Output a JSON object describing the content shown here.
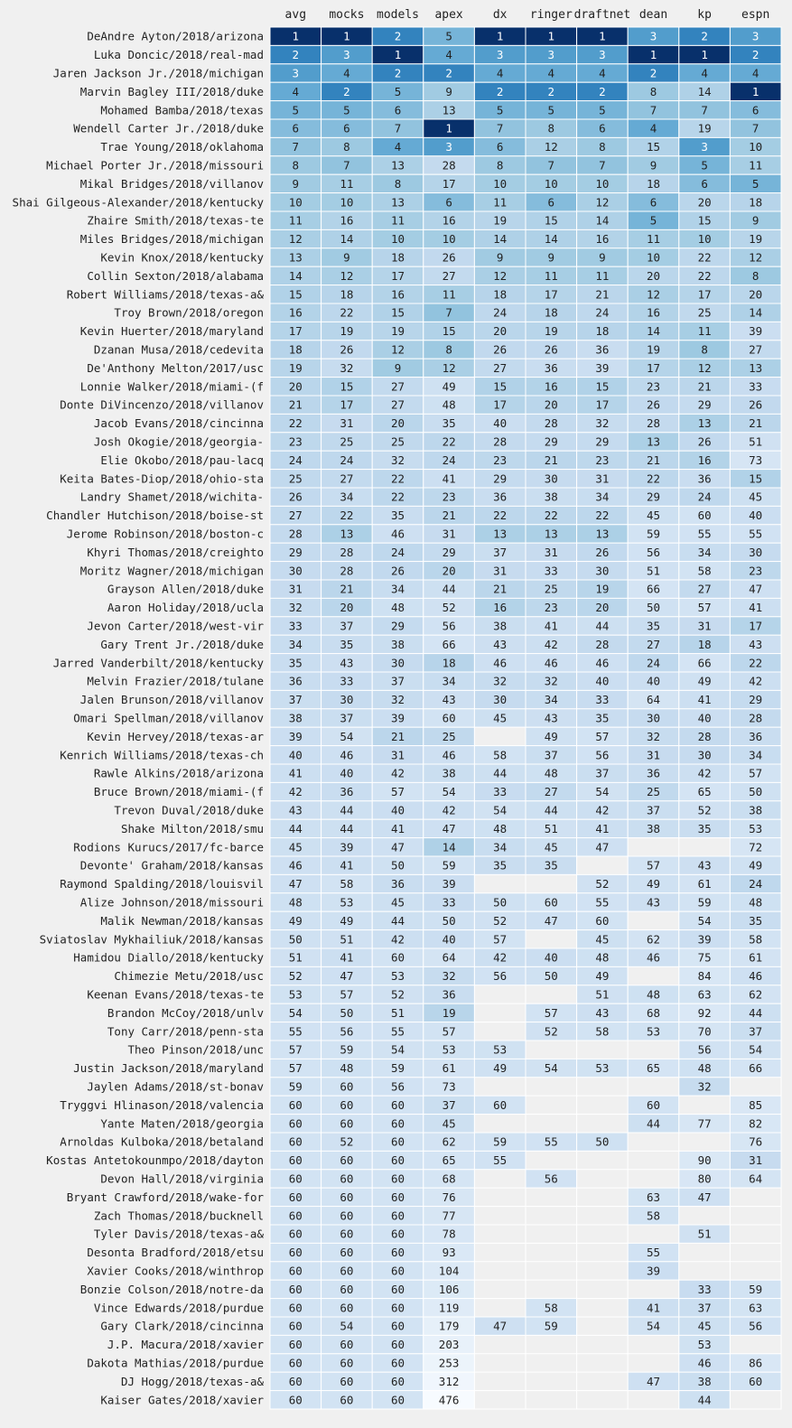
{
  "chart_data": {
    "type": "heatmap",
    "title": "",
    "xlabel": "",
    "ylabel": "",
    "colormap": "Blues (darker = better rank)",
    "colors": {
      "background": "#f0f0f0",
      "cell_border": "#ffffff",
      "text": "#222222"
    },
    "columns": [
      "avg",
      "mocks",
      "models",
      "apex",
      "dx",
      "ringer",
      "draftnet",
      "dean",
      "kp",
      "espn"
    ],
    "rows": [
      {
        "label": "DeAndre Ayton/2018/arizona",
        "values": [
          1,
          1,
          2,
          5,
          1,
          1,
          1,
          3,
          2,
          3
        ]
      },
      {
        "label": "Luka Doncic/2018/real-mad",
        "values": [
          2,
          3,
          1,
          4,
          3,
          3,
          3,
          1,
          1,
          2
        ]
      },
      {
        "label": "Jaren Jackson Jr./2018/michigan",
        "values": [
          3,
          4,
          2,
          2,
          4,
          4,
          4,
          2,
          4,
          4
        ]
      },
      {
        "label": "Marvin Bagley III/2018/duke",
        "values": [
          4,
          2,
          5,
          9,
          2,
          2,
          2,
          8,
          14,
          1
        ]
      },
      {
        "label": "Mohamed Bamba/2018/texas",
        "values": [
          5,
          5,
          6,
          13,
          5,
          5,
          5,
          7,
          7,
          6
        ]
      },
      {
        "label": "Wendell Carter Jr./2018/duke",
        "values": [
          6,
          6,
          7,
          1,
          7,
          8,
          6,
          4,
          19,
          7
        ]
      },
      {
        "label": "Trae Young/2018/oklahoma",
        "values": [
          7,
          8,
          4,
          3,
          6,
          12,
          8,
          15,
          3,
          10
        ]
      },
      {
        "label": "Michael Porter Jr./2018/missouri",
        "values": [
          8,
          7,
          13,
          28,
          8,
          7,
          7,
          9,
          5,
          11
        ]
      },
      {
        "label": "Mikal Bridges/2018/villanov",
        "values": [
          9,
          11,
          8,
          17,
          10,
          10,
          10,
          18,
          6,
          5
        ]
      },
      {
        "label": "Shai Gilgeous-Alexander/2018/kentucky",
        "values": [
          10,
          10,
          13,
          6,
          11,
          6,
          12,
          6,
          20,
          18
        ]
      },
      {
        "label": "Zhaire Smith/2018/texas-te",
        "values": [
          11,
          16,
          11,
          16,
          19,
          15,
          14,
          5,
          15,
          9
        ]
      },
      {
        "label": "Miles Bridges/2018/michigan",
        "values": [
          12,
          14,
          10,
          10,
          14,
          14,
          16,
          11,
          10,
          19
        ]
      },
      {
        "label": "Kevin Knox/2018/kentucky",
        "values": [
          13,
          9,
          18,
          26,
          9,
          9,
          9,
          10,
          22,
          12
        ]
      },
      {
        "label": "Collin Sexton/2018/alabama",
        "values": [
          14,
          12,
          17,
          27,
          12,
          11,
          11,
          20,
          22,
          8
        ]
      },
      {
        "label": "Robert Williams/2018/texas-a&",
        "values": [
          15,
          18,
          16,
          11,
          18,
          17,
          21,
          12,
          17,
          20
        ]
      },
      {
        "label": "Troy Brown/2018/oregon",
        "values": [
          16,
          22,
          15,
          7,
          24,
          18,
          24,
          16,
          25,
          14
        ]
      },
      {
        "label": "Kevin Huerter/2018/maryland",
        "values": [
          17,
          19,
          19,
          15,
          20,
          19,
          18,
          14,
          11,
          39
        ]
      },
      {
        "label": "Dzanan Musa/2018/cedevita",
        "values": [
          18,
          26,
          12,
          8,
          26,
          26,
          36,
          19,
          8,
          27
        ]
      },
      {
        "label": "De'Anthony Melton/2017/usc",
        "values": [
          19,
          32,
          9,
          12,
          27,
          36,
          39,
          17,
          12,
          13
        ]
      },
      {
        "label": "Lonnie Walker/2018/miami-(f",
        "values": [
          20,
          15,
          27,
          49,
          15,
          16,
          15,
          23,
          21,
          33
        ]
      },
      {
        "label": "Donte DiVincenzo/2018/villanov",
        "values": [
          21,
          17,
          27,
          48,
          17,
          20,
          17,
          26,
          29,
          26
        ]
      },
      {
        "label": "Jacob Evans/2018/cincinna",
        "values": [
          22,
          31,
          20,
          35,
          40,
          28,
          32,
          28,
          13,
          21
        ]
      },
      {
        "label": "Josh Okogie/2018/georgia-",
        "values": [
          23,
          25,
          25,
          22,
          28,
          29,
          29,
          13,
          26,
          51
        ]
      },
      {
        "label": "Elie Okobo/2018/pau-lacq",
        "values": [
          24,
          24,
          32,
          24,
          23,
          21,
          23,
          21,
          16,
          73
        ]
      },
      {
        "label": "Keita Bates-Diop/2018/ohio-sta",
        "values": [
          25,
          27,
          22,
          41,
          29,
          30,
          31,
          22,
          36,
          15
        ]
      },
      {
        "label": "Landry Shamet/2018/wichita-",
        "values": [
          26,
          34,
          22,
          23,
          36,
          38,
          34,
          29,
          24,
          45
        ]
      },
      {
        "label": "Chandler Hutchison/2018/boise-st",
        "values": [
          27,
          22,
          35,
          21,
          22,
          22,
          22,
          45,
          60,
          40
        ]
      },
      {
        "label": "Jerome Robinson/2018/boston-c",
        "values": [
          28,
          13,
          46,
          31,
          13,
          13,
          13,
          59,
          55,
          55
        ]
      },
      {
        "label": "Khyri Thomas/2018/creighto",
        "values": [
          29,
          28,
          24,
          29,
          37,
          31,
          26,
          56,
          34,
          30
        ]
      },
      {
        "label": "Moritz Wagner/2018/michigan",
        "values": [
          30,
          28,
          26,
          20,
          31,
          33,
          30,
          51,
          58,
          23
        ]
      },
      {
        "label": "Grayson Allen/2018/duke",
        "values": [
          31,
          21,
          34,
          44,
          21,
          25,
          19,
          66,
          27,
          47
        ]
      },
      {
        "label": "Aaron Holiday/2018/ucla",
        "values": [
          32,
          20,
          48,
          52,
          16,
          23,
          20,
          50,
          57,
          41
        ]
      },
      {
        "label": "Jevon Carter/2018/west-vir",
        "values": [
          33,
          37,
          29,
          56,
          38,
          41,
          44,
          35,
          31,
          17
        ]
      },
      {
        "label": "Gary Trent Jr./2018/duke",
        "values": [
          34,
          35,
          38,
          66,
          43,
          42,
          28,
          27,
          18,
          43
        ]
      },
      {
        "label": "Jarred Vanderbilt/2018/kentucky",
        "values": [
          35,
          43,
          30,
          18,
          46,
          46,
          46,
          24,
          66,
          22
        ]
      },
      {
        "label": "Melvin Frazier/2018/tulane",
        "values": [
          36,
          33,
          37,
          34,
          32,
          32,
          40,
          40,
          49,
          42
        ]
      },
      {
        "label": "Jalen Brunson/2018/villanov",
        "values": [
          37,
          30,
          32,
          43,
          30,
          34,
          33,
          64,
          41,
          29
        ]
      },
      {
        "label": "Omari Spellman/2018/villanov",
        "values": [
          38,
          37,
          39,
          60,
          45,
          43,
          35,
          30,
          40,
          28
        ]
      },
      {
        "label": "Kevin Hervey/2018/texas-ar",
        "values": [
          39,
          54,
          21,
          25,
          null,
          49,
          57,
          32,
          28,
          36
        ]
      },
      {
        "label": "Kenrich Williams/2018/texas-ch",
        "values": [
          40,
          46,
          31,
          46,
          58,
          37,
          56,
          31,
          30,
          34
        ]
      },
      {
        "label": "Rawle Alkins/2018/arizona",
        "values": [
          41,
          40,
          42,
          38,
          44,
          48,
          37,
          36,
          42,
          57
        ]
      },
      {
        "label": "Bruce Brown/2018/miami-(f",
        "values": [
          42,
          36,
          57,
          54,
          33,
          27,
          54,
          25,
          65,
          50
        ]
      },
      {
        "label": "Trevon Duval/2018/duke",
        "values": [
          43,
          44,
          40,
          42,
          54,
          44,
          42,
          37,
          52,
          38
        ]
      },
      {
        "label": "Shake Milton/2018/smu",
        "values": [
          44,
          44,
          41,
          47,
          48,
          51,
          41,
          38,
          35,
          53
        ]
      },
      {
        "label": "Rodions Kurucs/2017/fc-barce",
        "values": [
          45,
          39,
          47,
          14,
          34,
          45,
          47,
          null,
          null,
          72
        ]
      },
      {
        "label": "Devonte' Graham/2018/kansas",
        "values": [
          46,
          41,
          50,
          59,
          35,
          35,
          null,
          57,
          43,
          49
        ]
      },
      {
        "label": "Raymond Spalding/2018/louisvil",
        "values": [
          47,
          58,
          36,
          39,
          null,
          null,
          52,
          49,
          61,
          24
        ]
      },
      {
        "label": "Alize Johnson/2018/missouri",
        "values": [
          48,
          53,
          45,
          33,
          50,
          60,
          55,
          43,
          59,
          48
        ]
      },
      {
        "label": "Malik Newman/2018/kansas",
        "values": [
          49,
          49,
          44,
          50,
          52,
          47,
          60,
          null,
          54,
          35
        ]
      },
      {
        "label": "Sviatoslav Mykhailiuk/2018/kansas",
        "values": [
          50,
          51,
          42,
          40,
          57,
          null,
          45,
          62,
          39,
          58
        ]
      },
      {
        "label": "Hamidou Diallo/2018/kentucky",
        "values": [
          51,
          41,
          60,
          64,
          42,
          40,
          48,
          46,
          75,
          61
        ]
      },
      {
        "label": "Chimezie Metu/2018/usc",
        "values": [
          52,
          47,
          53,
          32,
          56,
          50,
          49,
          null,
          84,
          46
        ]
      },
      {
        "label": "Keenan Evans/2018/texas-te",
        "values": [
          53,
          57,
          52,
          36,
          null,
          null,
          51,
          48,
          63,
          62
        ]
      },
      {
        "label": "Brandon McCoy/2018/unlv",
        "values": [
          54,
          50,
          51,
          19,
          null,
          57,
          43,
          68,
          92,
          44
        ]
      },
      {
        "label": "Tony Carr/2018/penn-sta",
        "values": [
          55,
          56,
          55,
          57,
          null,
          52,
          58,
          53,
          70,
          37
        ]
      },
      {
        "label": "Theo Pinson/2018/unc",
        "values": [
          57,
          59,
          54,
          53,
          53,
          null,
          null,
          null,
          56,
          54
        ]
      },
      {
        "label": "Justin Jackson/2018/maryland",
        "values": [
          57,
          48,
          59,
          61,
          49,
          54,
          53,
          65,
          48,
          66
        ]
      },
      {
        "label": "Jaylen Adams/2018/st-bonav",
        "values": [
          59,
          60,
          56,
          73,
          null,
          null,
          null,
          null,
          32,
          null
        ]
      },
      {
        "label": "Tryggvi Hlinason/2018/valencia",
        "values": [
          60,
          60,
          60,
          37,
          60,
          null,
          null,
          60,
          null,
          85
        ]
      },
      {
        "label": "Yante Maten/2018/georgia",
        "values": [
          60,
          60,
          60,
          45,
          null,
          null,
          null,
          44,
          77,
          82
        ]
      },
      {
        "label": "Arnoldas Kulboka/2018/betaland",
        "values": [
          60,
          52,
          60,
          62,
          59,
          55,
          50,
          null,
          null,
          76
        ]
      },
      {
        "label": "Kostas Antetokounmpo/2018/dayton",
        "values": [
          60,
          60,
          60,
          65,
          55,
          null,
          null,
          null,
          90,
          31
        ]
      },
      {
        "label": "Devon Hall/2018/virginia",
        "values": [
          60,
          60,
          60,
          68,
          null,
          56,
          null,
          null,
          80,
          64
        ]
      },
      {
        "label": "Bryant Crawford/2018/wake-for",
        "values": [
          60,
          60,
          60,
          76,
          null,
          null,
          null,
          63,
          47,
          null
        ]
      },
      {
        "label": "Zach Thomas/2018/bucknell",
        "values": [
          60,
          60,
          60,
          77,
          null,
          null,
          null,
          58,
          null,
          null
        ]
      },
      {
        "label": "Tyler Davis/2018/texas-a&",
        "values": [
          60,
          60,
          60,
          78,
          null,
          null,
          null,
          null,
          51,
          null
        ]
      },
      {
        "label": "Desonta Bradford/2018/etsu",
        "values": [
          60,
          60,
          60,
          93,
          null,
          null,
          null,
          55,
          null,
          null
        ]
      },
      {
        "label": "Xavier Cooks/2018/winthrop",
        "values": [
          60,
          60,
          60,
          104,
          null,
          null,
          null,
          39,
          null,
          null
        ]
      },
      {
        "label": "Bonzie Colson/2018/notre-da",
        "values": [
          60,
          60,
          60,
          106,
          null,
          null,
          null,
          null,
          33,
          59
        ]
      },
      {
        "label": "Vince Edwards/2018/purdue",
        "values": [
          60,
          60,
          60,
          119,
          null,
          58,
          null,
          41,
          37,
          63
        ]
      },
      {
        "label": "Gary Clark/2018/cincinna",
        "values": [
          60,
          54,
          60,
          179,
          47,
          59,
          null,
          54,
          45,
          56
        ]
      },
      {
        "label": "J.P. Macura/2018/xavier",
        "values": [
          60,
          60,
          60,
          203,
          null,
          null,
          null,
          null,
          53,
          null
        ]
      },
      {
        "label": "Dakota Mathias/2018/purdue",
        "values": [
          60,
          60,
          60,
          253,
          null,
          null,
          null,
          null,
          46,
          86
        ]
      },
      {
        "label": "DJ Hogg/2018/texas-a&",
        "values": [
          60,
          60,
          60,
          312,
          null,
          null,
          null,
          47,
          38,
          60
        ]
      },
      {
        "label": "Kaiser Gates/2018/xavier",
        "values": [
          60,
          60,
          60,
          476,
          null,
          null,
          null,
          null,
          44,
          null
        ]
      }
    ]
  }
}
